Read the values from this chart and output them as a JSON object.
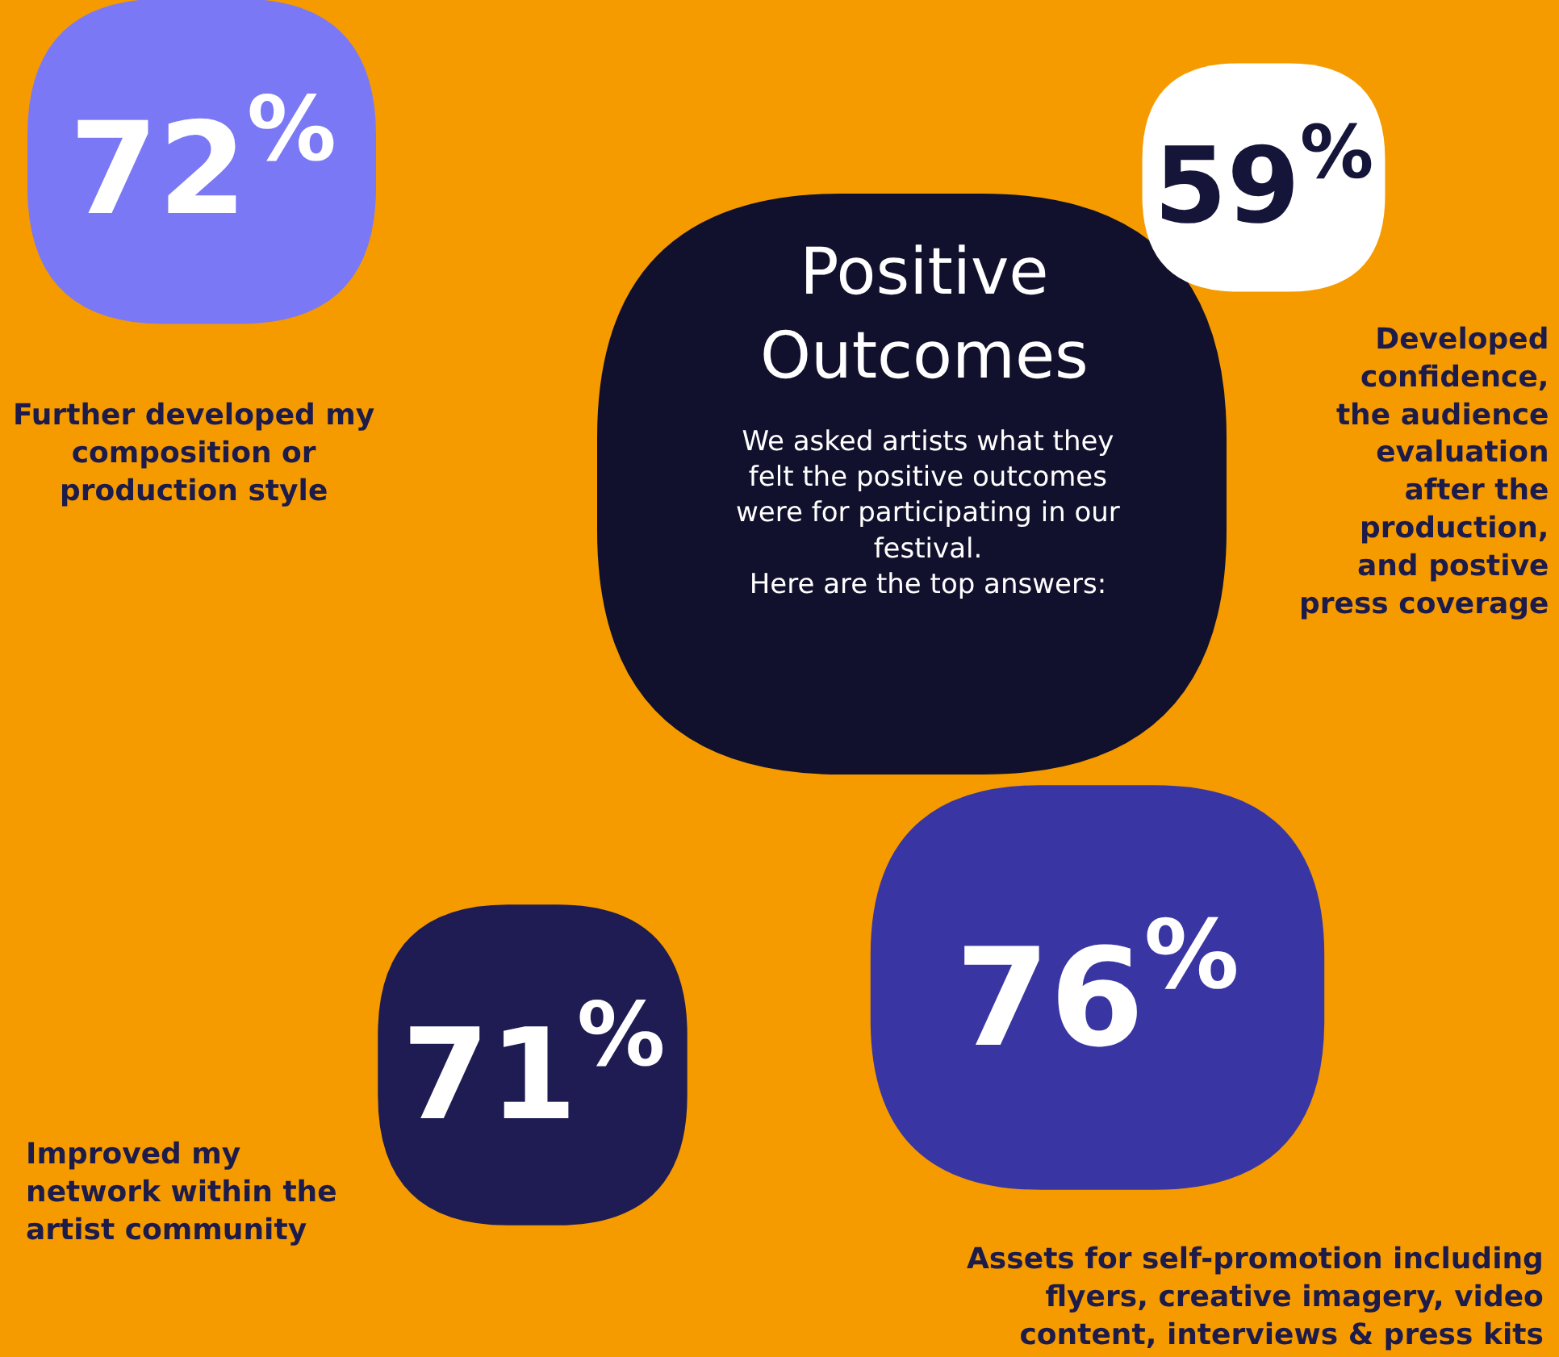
{
  "chart_data": {
    "type": "other",
    "title": "Positive Outcomes",
    "subtitle": "We asked artists what they felt the positive outcomes were for participating in our festival.\nHere are the top answers:",
    "categories": [
      "Further developed my composition or production style",
      "Developed confidence, the audience evaluation after the production, and postive press coverage",
      "Improved my network within the artist community",
      "Assets for self-promotion including flyers, creative imagery, video content, interviews & press kits"
    ],
    "values": [
      72,
      59,
      71,
      76
    ],
    "value_labels": [
      "72$^{%}$",
      "59$^{%}$",
      "71$^{%}$",
      "76$^{%}$"
    ],
    "colors": [
      "#7b78f6",
      "#ffffff",
      "#1e1c52",
      "#3936a3"
    ]
  }
}
